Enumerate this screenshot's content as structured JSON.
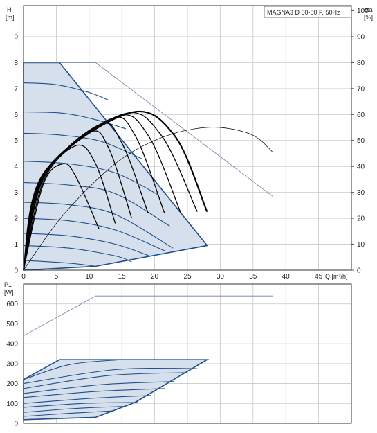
{
  "chart_data": [
    {
      "type": "line",
      "title": "MAGNA3 D 50-80 F, 50Hz",
      "xlabel": "Q [m³/h]",
      "ylabel": "H [m]",
      "ylabel_lines": [
        "H",
        "[m]"
      ],
      "ylabel_right_lines": [
        "eta",
        "[%]"
      ],
      "xlim": [
        0,
        50
      ],
      "ylim": [
        0,
        10.2
      ],
      "ylim_right": [
        0,
        102
      ],
      "x_ticks": [
        "0",
        "5",
        "10",
        "15",
        "20",
        "25",
        "30",
        "35",
        "40",
        "45"
      ],
      "y_ticks": [
        "0",
        "1",
        "2",
        "3",
        "4",
        "5",
        "6",
        "7",
        "8",
        "9"
      ],
      "y_right_ticks": [
        "0",
        "10",
        "20",
        "30",
        "40",
        "50",
        "60",
        "70",
        "80",
        "90",
        "100"
      ],
      "grid": true,
      "colors": {
        "envelope_fill": "#d6e0ec",
        "envelope_edge": "#1f4e8c",
        "speed_curve": "#1f4e8c",
        "twin_curve": "#000000",
        "efficiency_curve": "#000000",
        "max_curve": "#6b7fa8"
      },
      "envelope": {
        "x": [
          0,
          5.5,
          28,
          11,
          0
        ],
        "y": [
          8,
          8,
          0.95,
          0.15,
          0
        ]
      },
      "max_curve": {
        "x": [
          0,
          11,
          38
        ],
        "y": [
          8,
          8,
          2.85
        ]
      },
      "speed_curves": [
        {
          "x": [
            0,
            7,
            11
          ],
          "y": [
            0.38,
            0.27,
            0.15
          ]
        },
        {
          "x": [
            0,
            7,
            14,
            16.5
          ],
          "y": [
            0.95,
            0.85,
            0.55,
            0.32
          ]
        },
        {
          "x": [
            0,
            7,
            14,
            19.2
          ],
          "y": [
            1.42,
            1.32,
            1.0,
            0.55
          ]
        },
        {
          "x": [
            0,
            7,
            14,
            21.5
          ],
          "y": [
            2.0,
            1.9,
            1.55,
            0.75
          ]
        },
        {
          "x": [
            0,
            7,
            14,
            22.8
          ],
          "y": [
            2.62,
            2.52,
            2.15,
            0.85
          ]
        },
        {
          "x": [
            0,
            7,
            14,
            22.3
          ],
          "y": [
            3.38,
            3.28,
            2.95,
            1.7
          ]
        },
        {
          "x": [
            0,
            7,
            14,
            20.6
          ],
          "y": [
            4.2,
            4.1,
            3.75,
            2.9
          ]
        },
        {
          "x": [
            0,
            6,
            12,
            18.0
          ],
          "y": [
            5.28,
            5.2,
            4.95,
            4.3
          ]
        },
        {
          "x": [
            0,
            6,
            11,
            15.6
          ],
          "y": [
            6.1,
            6.05,
            5.8,
            5.45
          ]
        },
        {
          "x": [
            0,
            5,
            10,
            13.0
          ],
          "y": [
            7.22,
            7.15,
            6.85,
            6.55
          ]
        }
      ],
      "twin_pump_curves": [
        {
          "x": [
            0,
            3,
            6,
            8,
            11.5
          ],
          "y": [
            0,
            3.3,
            4.1,
            3.6,
            1.6
          ]
        },
        {
          "x": [
            0,
            3,
            8,
            11,
            14
          ],
          "y": [
            0,
            3.4,
            4.8,
            4.1,
            1.8
          ]
        },
        {
          "x": [
            0,
            3,
            10,
            13,
            16.5
          ],
          "y": [
            0,
            3.5,
            5.3,
            4.7,
            2.0
          ]
        },
        {
          "x": [
            0,
            3,
            11.5,
            15,
            19
          ],
          "y": [
            0,
            3.55,
            5.6,
            4.9,
            2.2
          ]
        },
        {
          "x": [
            0,
            3,
            13,
            17,
            21.5
          ],
          "y": [
            0,
            3.6,
            5.8,
            5.2,
            2.2
          ]
        },
        {
          "x": [
            0,
            3,
            14,
            19,
            24
          ],
          "y": [
            0,
            3.65,
            5.9,
            5.2,
            2.2
          ]
        },
        {
          "x": [
            0,
            3,
            15,
            21,
            26.5
          ],
          "y": [
            0,
            3.7,
            6.0,
            5.2,
            2.25
          ]
        },
        {
          "x": [
            0,
            3,
            16,
            23,
            28
          ],
          "y": [
            0,
            3.7,
            6.05,
            5.2,
            2.25
          ]
        }
      ],
      "efficiency_curve": {
        "x": [
          0,
          5,
          10,
          15,
          20,
          25,
          30,
          35,
          38
        ],
        "y": [
          0,
          18,
          32,
          43,
          50,
          54,
          55,
          52,
          45.5
        ]
      }
    },
    {
      "type": "line",
      "xlabel": "",
      "ylabel": "P1 [W]",
      "ylabel_lines": [
        "P1",
        "[W]"
      ],
      "xlim": [
        0,
        50
      ],
      "ylim": [
        0,
        700
      ],
      "y_ticks": [
        "0",
        "100",
        "200",
        "300",
        "400",
        "500",
        "600"
      ],
      "grid": true,
      "envelope": {
        "x": [
          0,
          5.5,
          28,
          17,
          11,
          0
        ],
        "y": [
          220,
          320,
          320,
          105,
          30,
          18
        ]
      },
      "max_curve": {
        "x": [
          0,
          11,
          38
        ],
        "y": [
          440,
          640,
          640
        ]
      },
      "power_curves": [
        {
          "x": [
            0,
            6,
            11
          ],
          "y": [
            18,
            25,
            30
          ]
        },
        {
          "x": [
            0,
            7,
            13.5
          ],
          "y": [
            35,
            50,
            62
          ]
        },
        {
          "x": [
            0,
            8,
            15.5
          ],
          "y": [
            55,
            75,
            85
          ]
        },
        {
          "x": [
            0,
            9,
            17.5
          ],
          "y": [
            80,
            100,
            105
          ]
        },
        {
          "x": [
            0,
            10,
            19.5
          ],
          "y": [
            100,
            125,
            140
          ]
        },
        {
          "x": [
            0,
            11,
            21.5
          ],
          "y": [
            130,
            160,
            175
          ]
        },
        {
          "x": [
            0,
            12,
            23
          ],
          "y": [
            150,
            195,
            210
          ]
        },
        {
          "x": [
            0,
            13,
            25
          ],
          "y": [
            175,
            240,
            255
          ]
        },
        {
          "x": [
            0,
            14,
            26.5
          ],
          "y": [
            200,
            270,
            275
          ]
        },
        {
          "x": [
            0,
            7,
            15
          ],
          "y": [
            220,
            295,
            320
          ]
        }
      ]
    }
  ]
}
